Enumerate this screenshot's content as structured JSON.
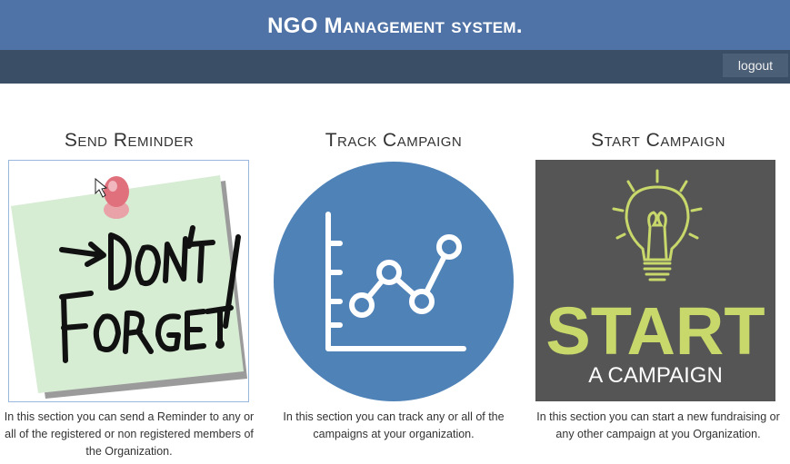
{
  "header": {
    "title": "NGO Management system."
  },
  "nav": {
    "logout_label": "logout"
  },
  "cards": [
    {
      "title": "Send Reminder",
      "image_icon": "dont-forget-note",
      "description": "In this section you can send a Reminder to any or all of the registered or non registered members of the Organization."
    },
    {
      "title": "Track Campaign",
      "image_icon": "line-chart-circle",
      "description": "In this section you can track any or all of the campaigns at your organization."
    },
    {
      "title": "Start Campaign",
      "image_icon": "lightbulb",
      "image_text_big": "START",
      "image_text_small": "A CAMPAIGN",
      "description": "In this section you can start a new fundraising or any other campaign at you Organization."
    }
  ],
  "colors": {
    "header_bg": "#4f73a6",
    "navbar_bg": "#3a4e66",
    "chart_circle": "#4f83b8",
    "start_bg": "#555555",
    "start_text": "#c8d86a"
  }
}
